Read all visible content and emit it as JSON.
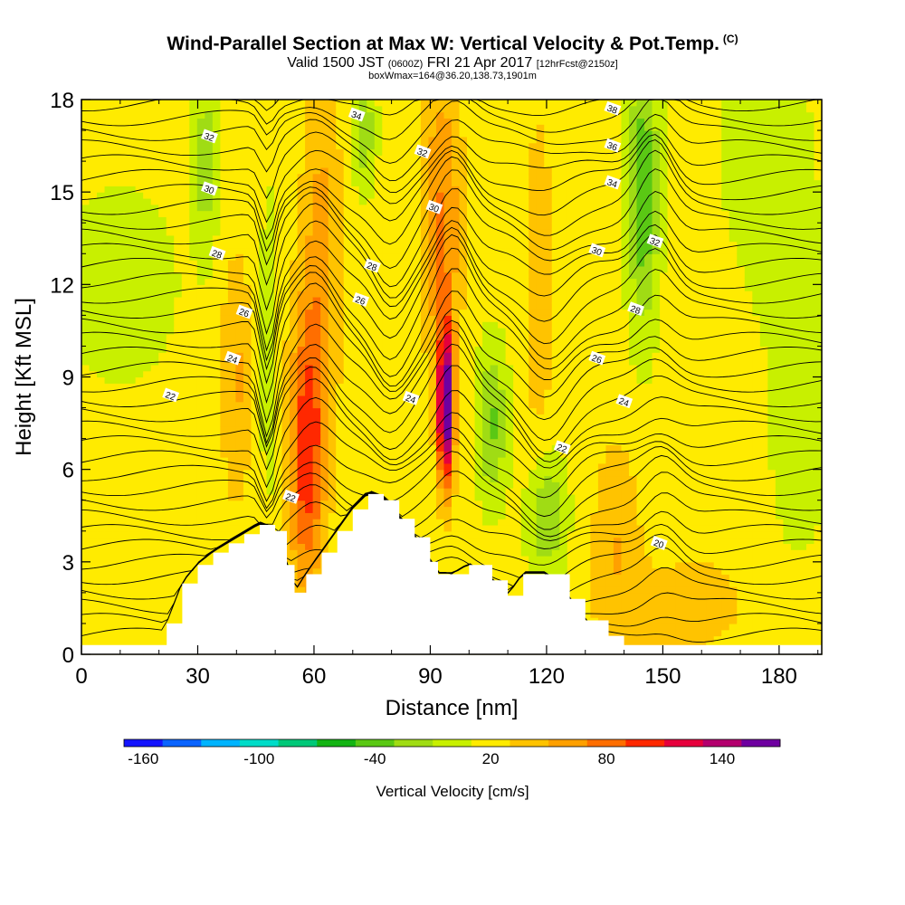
{
  "title": {
    "main": "Wind-Parallel Section at Max W: Vertical Velocity & Pot.Temp.",
    "copyright": "(C)",
    "valid_prefix": "Valid 1500 JST",
    "valid_utc": "(0600Z)",
    "valid_date": "FRI 21 Apr 2017",
    "forecast": "[12hrFcst@2150z]",
    "box_info": "boxWmax=164@36.20,138.73,1901m"
  },
  "colorbar": {
    "title": "Vertical Velocity [cm/s]",
    "tick_labels": [
      "-160",
      "-100",
      "-40",
      "20",
      "80",
      "140"
    ],
    "colors": [
      "#1414ff",
      "#0a64ff",
      "#00b4ff",
      "#00dcc8",
      "#00c878",
      "#14b414",
      "#5ac814",
      "#a0dc14",
      "#c8f000",
      "#ffeb00",
      "#ffc300",
      "#ffa000",
      "#ff6e00",
      "#ff2800",
      "#e6003c",
      "#b4006e",
      "#6e00a0"
    ],
    "bin_min": -170,
    "bin_width": 20
  },
  "chart_data": {
    "type": "contour",
    "xlabel": "Distance [nm]",
    "ylabel": "Height [Kft MSL]",
    "xlim": [
      0,
      191
    ],
    "ylim": [
      0,
      18
    ],
    "x_ticks": [
      0,
      30,
      60,
      90,
      120,
      150,
      180
    ],
    "y_ticks": [
      0,
      3,
      6,
      9,
      12,
      15,
      18
    ],
    "fill_variable": "Vertical Velocity [cm/s]",
    "contour_variable": "Potential Temperature",
    "updraft_cores": [
      {
        "x": 58,
        "y": 6.5,
        "w": 100
      },
      {
        "x": 94,
        "y": 8,
        "w": 164
      },
      {
        "x": 138,
        "y": 4,
        "w": 40
      }
    ],
    "downdraft_cores": [
      {
        "x": 145,
        "y": 15,
        "w": -50
      },
      {
        "x": 106,
        "y": 7.5,
        "w": -35
      },
      {
        "x": 120,
        "y": 4.5,
        "w": -35
      },
      {
        "x": 73,
        "y": 17,
        "w": -30
      },
      {
        "x": 32,
        "y": 16,
        "w": -25
      }
    ],
    "terrain": [
      {
        "x": 0,
        "h": 0.3
      },
      {
        "x": 20,
        "h": 0.3
      },
      {
        "x": 22,
        "h": 1.0
      },
      {
        "x": 26,
        "h": 2.3
      },
      {
        "x": 30,
        "h": 2.9
      },
      {
        "x": 34,
        "h": 3.3
      },
      {
        "x": 38,
        "h": 3.6
      },
      {
        "x": 42,
        "h": 3.9
      },
      {
        "x": 46,
        "h": 4.2
      },
      {
        "x": 50,
        "h": 4.0
      },
      {
        "x": 53,
        "h": 2.9
      },
      {
        "x": 55,
        "h": 2.0
      },
      {
        "x": 58,
        "h": 2.6
      },
      {
        "x": 62,
        "h": 3.3
      },
      {
        "x": 66,
        "h": 4.0
      },
      {
        "x": 70,
        "h": 4.7
      },
      {
        "x": 74,
        "h": 5.2
      },
      {
        "x": 78,
        "h": 5.0
      },
      {
        "x": 82,
        "h": 4.4
      },
      {
        "x": 86,
        "h": 3.8
      },
      {
        "x": 90,
        "h": 3.0
      },
      {
        "x": 92,
        "h": 2.6
      },
      {
        "x": 96,
        "h": 2.6
      },
      {
        "x": 100,
        "h": 2.9
      },
      {
        "x": 106,
        "h": 2.4
      },
      {
        "x": 110,
        "h": 1.9
      },
      {
        "x": 114,
        "h": 2.6
      },
      {
        "x": 120,
        "h": 2.6
      },
      {
        "x": 126,
        "h": 1.8
      },
      {
        "x": 130,
        "h": 1.1
      },
      {
        "x": 136,
        "h": 0.6
      },
      {
        "x": 140,
        "h": 0.3
      },
      {
        "x": 191,
        "h": 0.3
      }
    ],
    "contour_labels": [
      {
        "x": 33,
        "y": 16.8,
        "text": "32"
      },
      {
        "x": 33,
        "y": 15.1,
        "text": "30"
      },
      {
        "x": 35,
        "y": 13.0,
        "text": "28"
      },
      {
        "x": 42,
        "y": 11.1,
        "text": "26"
      },
      {
        "x": 39,
        "y": 9.6,
        "text": "24"
      },
      {
        "x": 23,
        "y": 8.4,
        "text": "22"
      },
      {
        "x": 54,
        "y": 5.1,
        "text": "22"
      },
      {
        "x": 71,
        "y": 17.5,
        "text": "34"
      },
      {
        "x": 88,
        "y": 16.3,
        "text": "32"
      },
      {
        "x": 91,
        "y": 14.5,
        "text": "30"
      },
      {
        "x": 75,
        "y": 12.6,
        "text": "28"
      },
      {
        "x": 72,
        "y": 11.5,
        "text": "26"
      },
      {
        "x": 85,
        "y": 8.3,
        "text": "24"
      },
      {
        "x": 124,
        "y": 6.7,
        "text": "22"
      },
      {
        "x": 137,
        "y": 17.7,
        "text": "38"
      },
      {
        "x": 137,
        "y": 16.5,
        "text": "36"
      },
      {
        "x": 137,
        "y": 15.3,
        "text": "34"
      },
      {
        "x": 148,
        "y": 13.4,
        "text": "32"
      },
      {
        "x": 133,
        "y": 13.1,
        "text": "30"
      },
      {
        "x": 143,
        "y": 11.2,
        "text": "28"
      },
      {
        "x": 133,
        "y": 9.6,
        "text": "26"
      },
      {
        "x": 140,
        "y": 8.2,
        "text": "24"
      },
      {
        "x": 149,
        "y": 3.6,
        "text": "20"
      }
    ]
  }
}
